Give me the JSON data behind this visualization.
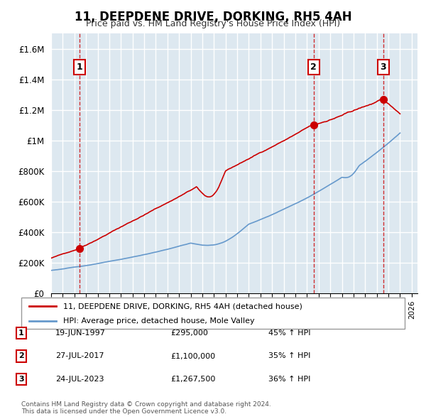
{
  "title": "11, DEEPDENE DRIVE, DORKING, RH5 4AH",
  "subtitle": "Price paid vs. HM Land Registry's House Price Index (HPI)",
  "ylabel_ticks": [
    0,
    200000,
    400000,
    600000,
    800000,
    1000000,
    1200000,
    1400000,
    1600000
  ],
  "ylabel_labels": [
    "£0",
    "£200K",
    "£400K",
    "£600K",
    "£800K",
    "£1M",
    "£1.2M",
    "£1.4M",
    "£1.6M"
  ],
  "ylim": [
    0,
    1700000
  ],
  "xlim_start": 1995.0,
  "xlim_end": 2026.5,
  "sales": [
    {
      "label": "1",
      "date": "19-JUN-1997",
      "price": 295000,
      "year": 1997.46,
      "hpi_pct": "45%"
    },
    {
      "label": "2",
      "date": "27-JUL-2017",
      "price": 1100000,
      "year": 2017.57,
      "hpi_pct": "35%"
    },
    {
      "label": "3",
      "date": "24-JUL-2023",
      "price": 1267500,
      "year": 2023.56,
      "hpi_pct": "36%"
    }
  ],
  "legend_property": "11, DEEPDENE DRIVE, DORKING, RH5 4AH (detached house)",
  "legend_hpi": "HPI: Average price, detached house, Mole Valley",
  "footer": "Contains HM Land Registry data © Crown copyright and database right 2024.\nThis data is licensed under the Open Government Licence v3.0.",
  "property_color": "#cc0000",
  "hpi_color": "#6699cc",
  "background_chart": "#dde8f0",
  "grid_color": "#ffffff",
  "vline_color": "#cc0000"
}
